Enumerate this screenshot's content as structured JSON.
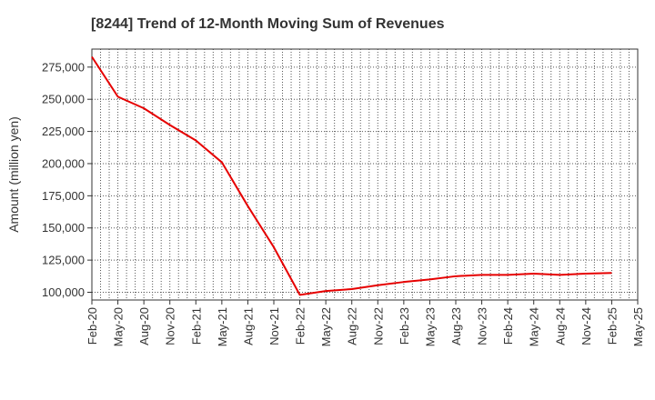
{
  "chart_data": {
    "type": "line",
    "title": "[8244]  Trend of 12-Month Moving Sum of Revenues",
    "xlabel": "",
    "ylabel": "Amount (million yen)",
    "x_tick_labels": [
      "Feb-20",
      "May-20",
      "Aug-20",
      "Nov-20",
      "Feb-21",
      "May-21",
      "Aug-21",
      "Nov-21",
      "Feb-22",
      "May-22",
      "Aug-22",
      "Nov-22",
      "Feb-23",
      "May-23",
      "Aug-23",
      "Nov-23",
      "Feb-24",
      "May-24",
      "Aug-24",
      "Nov-24",
      "Feb-25",
      "May-25"
    ],
    "y_ticks": [
      100000,
      125000,
      150000,
      175000,
      200000,
      225000,
      250000,
      275000
    ],
    "y_tick_labels": [
      "100,000",
      "125,000",
      "150,000",
      "175,000",
      "200,000",
      "225,000",
      "250,000",
      "275,000"
    ],
    "ylim": [
      94000,
      289000
    ],
    "grid": true,
    "legend": "none",
    "series": [
      {
        "color": "#e60000",
        "x": [
          "Feb-20",
          "May-20",
          "Aug-20",
          "Nov-20",
          "Feb-21",
          "May-21",
          "Aug-21",
          "Nov-21",
          "Feb-22",
          "May-22",
          "Aug-22",
          "Nov-22",
          "Feb-23",
          "May-23",
          "Aug-23",
          "Nov-23",
          "Feb-24",
          "May-24",
          "Aug-24",
          "Nov-24",
          "Feb-25"
        ],
        "values": [
          283000,
          252000,
          243000,
          230000,
          218000,
          201000,
          167000,
          135000,
          98000,
          101000,
          102500,
          105500,
          108000,
          110000,
          112500,
          113500,
          113500,
          114500,
          113500,
          114500,
          115000
        ]
      }
    ]
  }
}
